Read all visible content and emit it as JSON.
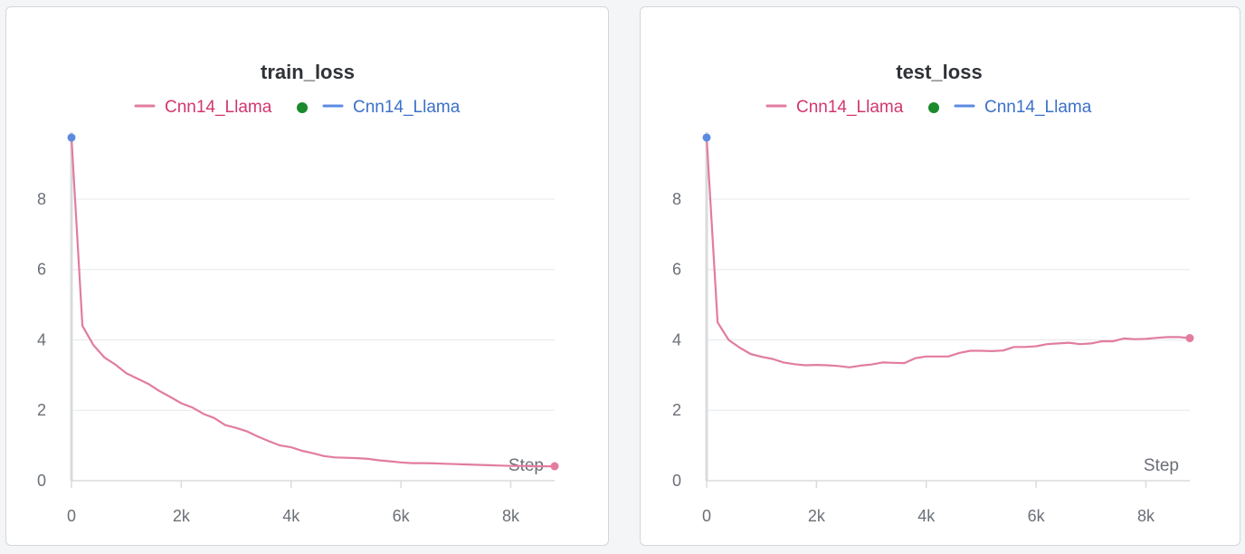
{
  "colors": {
    "series_pink": "#e27ca0",
    "legend_pink_text": "#d2366f",
    "series_blue": "#5b8be0",
    "legend_blue_text": "#3b70c9",
    "marker_green": "#1a8a2a",
    "grid": "#e6e8eb",
    "axis": "#d9dbde"
  },
  "chart_data": [
    {
      "type": "line",
      "title": "train_loss",
      "xlabel": "Step",
      "ylabel": "",
      "xlim": [
        0,
        8800
      ],
      "ylim": [
        0,
        9.8
      ],
      "x_ticks": [
        0,
        2000,
        4000,
        6000,
        8000
      ],
      "x_tick_labels": [
        "0",
        "2k",
        "4k",
        "6k",
        "8k"
      ],
      "y_ticks": [
        0,
        2,
        4,
        6,
        8
      ],
      "y_tick_labels": [
        "0",
        "2",
        "4",
        "6",
        "8"
      ],
      "grid": true,
      "legend_placement": "top-center",
      "series": [
        {
          "name": "Cnn14_Llama",
          "color": "#e27ca0",
          "x": [
            0,
            200,
            400,
            600,
            800,
            1000,
            1200,
            1400,
            1600,
            1800,
            2000,
            2200,
            2400,
            2600,
            2800,
            3000,
            3200,
            3400,
            3600,
            3800,
            4000,
            4200,
            4400,
            4600,
            4800,
            5000,
            5200,
            5400,
            5600,
            5800,
            6000,
            6200,
            6400,
            6600,
            6800,
            7000,
            7200,
            7400,
            7600,
            7800,
            8000,
            8200,
            8400,
            8600,
            8800
          ],
          "y": [
            9.75,
            4.4,
            3.85,
            3.5,
            3.3,
            3.05,
            2.9,
            2.75,
            2.55,
            2.38,
            2.2,
            2.08,
            1.9,
            1.78,
            1.58,
            1.5,
            1.4,
            1.25,
            1.12,
            1.0,
            0.95,
            0.85,
            0.78,
            0.7,
            0.66,
            0.65,
            0.64,
            0.62,
            0.58,
            0.55,
            0.52,
            0.5,
            0.5,
            0.49,
            0.48,
            0.47,
            0.46,
            0.45,
            0.44,
            0.43,
            0.42,
            0.42,
            0.41,
            0.41,
            0.41
          ]
        },
        {
          "name": "Cnn14_Llama",
          "color": "#5b8be0",
          "x": [
            0
          ],
          "y": [
            9.75
          ]
        }
      ]
    },
    {
      "type": "line",
      "title": "test_loss",
      "xlabel": "Step",
      "ylabel": "",
      "xlim": [
        0,
        8800
      ],
      "ylim": [
        0,
        9.8
      ],
      "x_ticks": [
        0,
        2000,
        4000,
        6000,
        8000
      ],
      "x_tick_labels": [
        "0",
        "2k",
        "4k",
        "6k",
        "8k"
      ],
      "y_ticks": [
        0,
        2,
        4,
        6,
        8
      ],
      "y_tick_labels": [
        "0",
        "2",
        "4",
        "6",
        "8"
      ],
      "grid": true,
      "legend_placement": "top-center",
      "series": [
        {
          "name": "Cnn14_Llama",
          "color": "#e27ca0",
          "x": [
            0,
            200,
            400,
            600,
            800,
            1000,
            1200,
            1400,
            1600,
            1800,
            2000,
            2200,
            2400,
            2600,
            2800,
            3000,
            3200,
            3400,
            3600,
            3800,
            4000,
            4200,
            4400,
            4600,
            4800,
            5000,
            5200,
            5400,
            5600,
            5800,
            6000,
            6200,
            6400,
            6600,
            6800,
            7000,
            7200,
            7400,
            7600,
            7800,
            8000,
            8200,
            8400,
            8600,
            8800
          ],
          "y": [
            9.75,
            4.5,
            4.0,
            3.78,
            3.6,
            3.52,
            3.46,
            3.36,
            3.31,
            3.28,
            3.29,
            3.28,
            3.26,
            3.22,
            3.27,
            3.3,
            3.36,
            3.35,
            3.34,
            3.48,
            3.53,
            3.53,
            3.53,
            3.63,
            3.69,
            3.69,
            3.68,
            3.7,
            3.8,
            3.8,
            3.82,
            3.88,
            3.9,
            3.92,
            3.88,
            3.9,
            3.96,
            3.96,
            4.04,
            4.02,
            4.03,
            4.06,
            4.08,
            4.08,
            4.05
          ]
        },
        {
          "name": "Cnn14_Llama",
          "color": "#5b8be0",
          "x": [
            0
          ],
          "y": [
            9.75
          ]
        }
      ]
    }
  ]
}
